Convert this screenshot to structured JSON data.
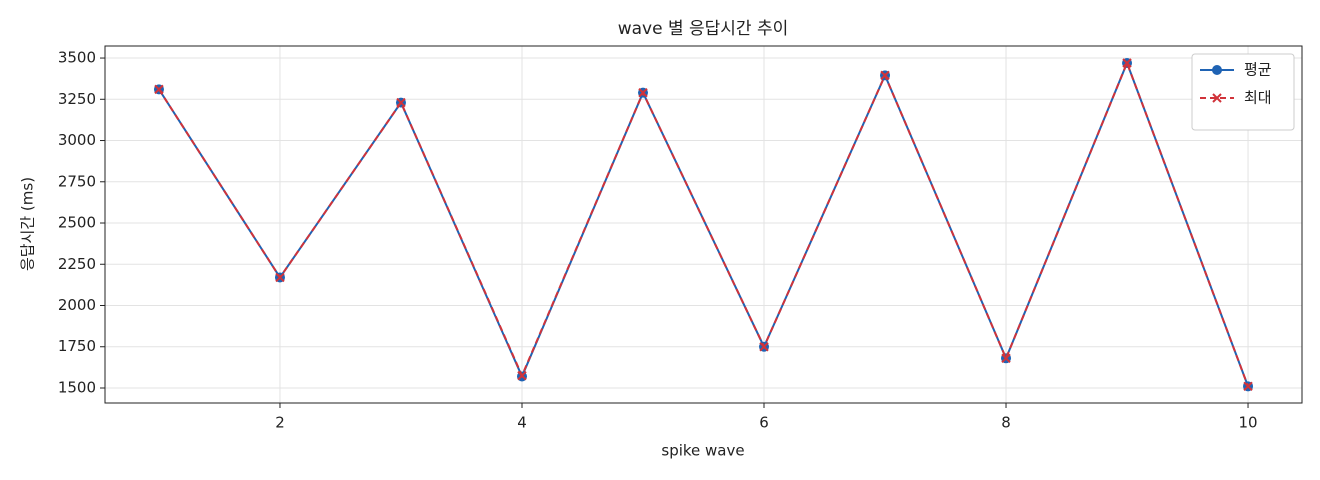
{
  "chart_data": {
    "type": "line",
    "title": "wave 별 응답시간 추이",
    "x_label": "spike wave",
    "y_label": "응답시간 (ms)",
    "x": [
      1,
      2,
      3,
      4,
      5,
      6,
      7,
      8,
      9,
      10
    ],
    "series": [
      {
        "name": "평균",
        "color": "#1f63b4",
        "marker": "o",
        "linestyle": "solid",
        "values": [
          3310,
          2170,
          3230,
          1570,
          3290,
          1750,
          3395,
          1680,
          3470,
          1510
        ]
      },
      {
        "name": "최대",
        "color": "#d1333a",
        "marker": "x",
        "linestyle": "dashed",
        "values": [
          3310,
          2170,
          3230,
          1575,
          3290,
          1750,
          3395,
          1680,
          3470,
          1510
        ]
      }
    ],
    "xlim": [
      0.554,
      10.446
    ],
    "xticks": [
      2,
      4,
      6,
      8,
      10
    ],
    "ylim": [
      1409,
      3573
    ],
    "yticks": [
      1500,
      1750,
      2000,
      2250,
      2500,
      2750,
      3000,
      3250,
      3500
    ],
    "grid": true,
    "legend": "upper right"
  }
}
